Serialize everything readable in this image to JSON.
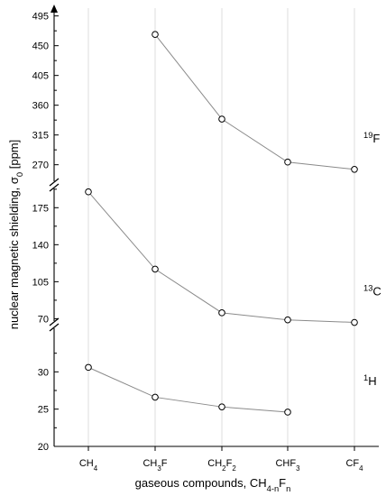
{
  "chart_data": {
    "type": "line",
    "x_axis": {
      "title": "gaseous compounds, CH",
      "title_sub": "4-n",
      "title_tail": "F",
      "title_sub2": "n",
      "categories": [
        {
          "name": "CH4",
          "main": "CH",
          "sub": "4",
          "main2": "",
          "sub2": ""
        },
        {
          "name": "CH3F",
          "main": "CH",
          "sub": "3",
          "main2": "F",
          "sub2": ""
        },
        {
          "name": "CH2F2",
          "main": "CH",
          "sub": "2",
          "main2": "F",
          "sub2": "2"
        },
        {
          "name": "CHF3",
          "main": "CHF",
          "sub": "3",
          "main2": "",
          "sub2": ""
        },
        {
          "name": "CF4",
          "main": "CF",
          "sub": "4",
          "main2": "",
          "sub2": ""
        }
      ]
    },
    "y_axis": {
      "title": "nuclear magnetic shielding, σ",
      "title_sub": "0",
      "title_tail": " [ppm]",
      "broken": true
    },
    "segments": [
      {
        "name": "1H",
        "label_sup": "1",
        "label_main": "H",
        "ylim": [
          20,
          35
        ],
        "ticks": [
          20,
          25,
          30
        ],
        "values": [
          30.6,
          26.6,
          25.3,
          24.6,
          null
        ]
      },
      {
        "name": "13C",
        "label_sup": "13",
        "label_main": "C",
        "ylim": [
          55,
          200
        ],
        "ticks": [
          70,
          105,
          140,
          175
        ],
        "values": [
          190.0,
          116.9,
          75.6,
          68.9,
          66.5
        ]
      },
      {
        "name": "19F",
        "label_sup": "19",
        "label_main": "F",
        "ylim": [
          245,
          500
        ],
        "ticks": [
          270,
          315,
          360,
          405,
          450,
          495
        ],
        "values": [
          null,
          467,
          339,
          274,
          263
        ]
      }
    ],
    "grid": {
      "vertical": true,
      "horizontal": false
    },
    "marker": "open-circle"
  }
}
